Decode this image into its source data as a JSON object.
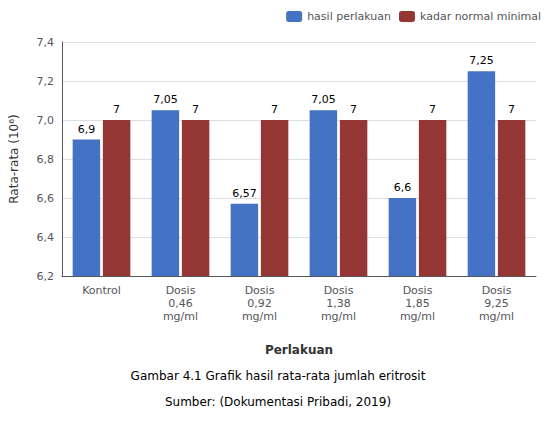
{
  "chart_data": {
    "type": "bar",
    "categories": [
      "Kontrol",
      "Dosis\n0,46\nmg/ml",
      "Dosis\n0,92\nmg/ml",
      "Dosis\n1,38\nmg/ml",
      "Dosis\n1,85\nmg/ml",
      "Dosis\n9,25\nmg/ml"
    ],
    "series": [
      {
        "name": "hasil perlakuan",
        "color": "#4472C4",
        "values": [
          6.9,
          7.05,
          6.57,
          7.05,
          6.6,
          7.25
        ],
        "value_labels": [
          "6,9",
          "7,05",
          "6,57",
          "7,05",
          "6,6",
          "7,25"
        ]
      },
      {
        "name": "kadar normal minimal",
        "color": "#943634",
        "values": [
          7,
          7,
          7,
          7,
          7,
          7
        ],
        "value_labels": [
          "7",
          "7",
          "7",
          "7",
          "7",
          "7"
        ]
      }
    ],
    "xlabel": "Perlakuan",
    "ylabel": "Rata-rata (10⁶)",
    "ylim": [
      6.2,
      7.4
    ],
    "yticks": [
      {
        "value": 6.2,
        "label": "6,2"
      },
      {
        "value": 6.4,
        "label": "6,4"
      },
      {
        "value": 6.6,
        "label": "6,6"
      },
      {
        "value": 6.8,
        "label": "6,8"
      },
      {
        "value": 7.0,
        "label": "7,0"
      },
      {
        "value": 7.2,
        "label": "7,2"
      },
      {
        "value": 7.4,
        "label": "7,4"
      }
    ],
    "grid": true,
    "legend": "upper right",
    "data_labels": true,
    "annotations": [
      "Gambar 4.1 Grafik hasil rata-rata jumlah eritrosit",
      "Sumber: (Dokumentasi Pribadi, 2019)"
    ]
  }
}
